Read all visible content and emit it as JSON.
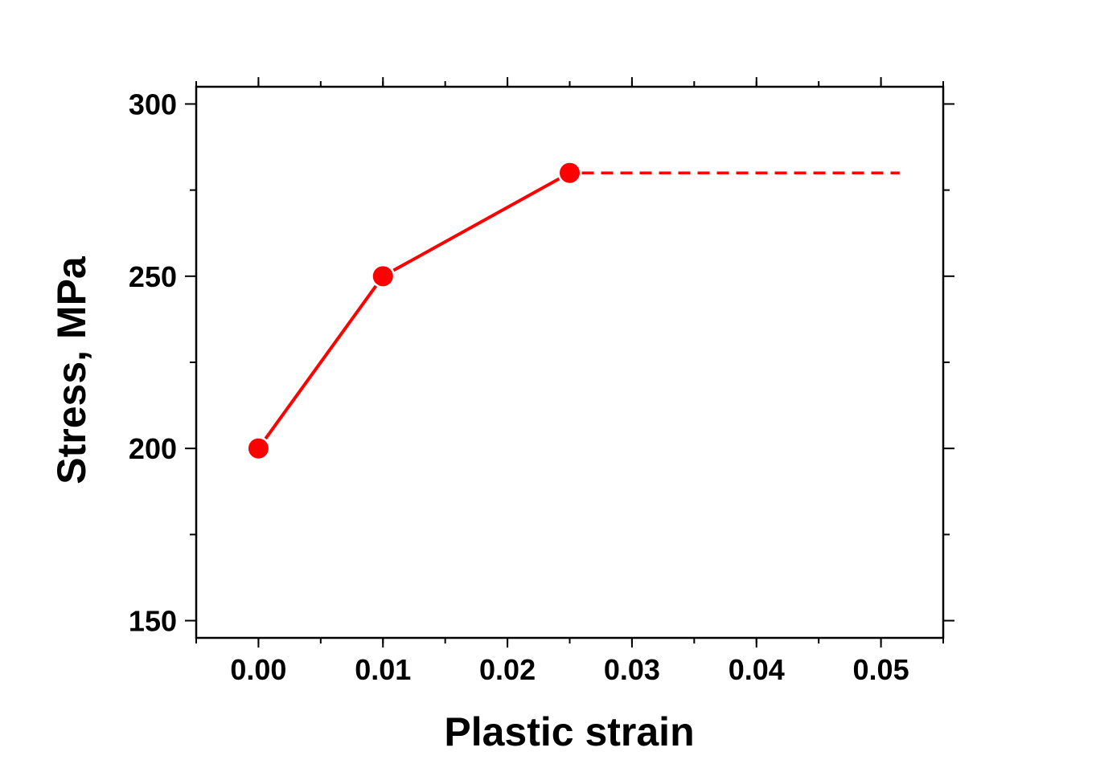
{
  "chart_data": {
    "type": "line",
    "title": "",
    "xlabel": "Plastic strain",
    "ylabel": "Stress, MPa",
    "xlim": [
      -0.005,
      0.055
    ],
    "ylim": [
      145,
      305
    ],
    "xticks": [
      0.0,
      0.01,
      0.02,
      0.03,
      0.04,
      0.05
    ],
    "xtick_labels": [
      "0.00",
      "0.01",
      "0.02",
      "0.03",
      "0.04",
      "0.05"
    ],
    "yticks": [
      150,
      200,
      250,
      300
    ],
    "ytick_labels": [
      "150",
      "200",
      "250",
      "300"
    ],
    "grid": false,
    "legend": "none",
    "series": [
      {
        "style": "solid line with circle markers",
        "color": "#ff0000",
        "x": [
          0.0,
          0.01,
          0.025
        ],
        "y": [
          200,
          250,
          280
        ]
      },
      {
        "style": "dashed line",
        "color": "#ff0000",
        "x": [
          0.025,
          0.0515
        ],
        "y": [
          280,
          280
        ]
      }
    ]
  }
}
